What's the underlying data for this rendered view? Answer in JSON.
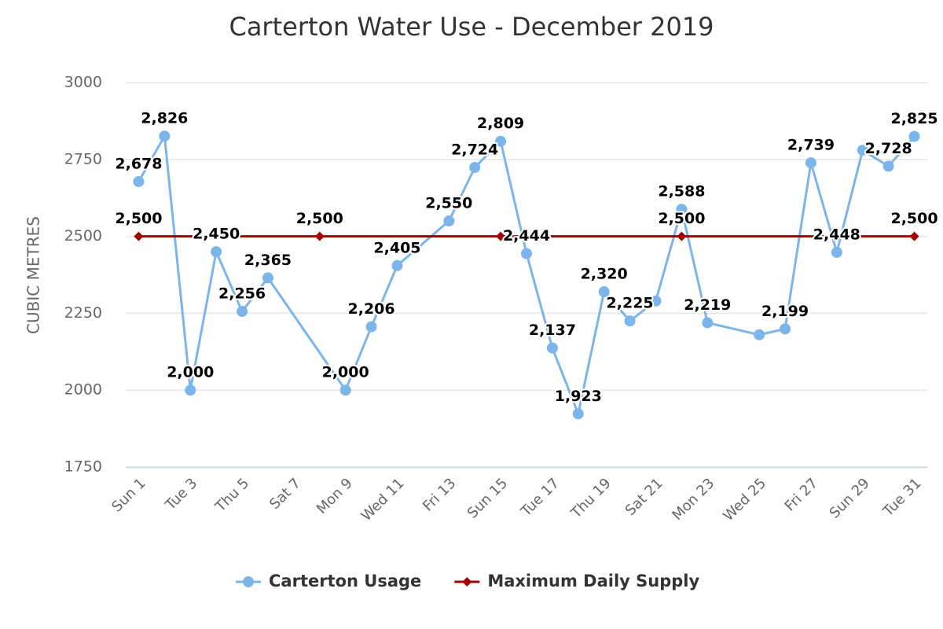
{
  "chart_data": {
    "type": "line",
    "title": "Carterton Water Use - December 2019",
    "y_label": "CUBIC METRES",
    "categories": [
      "Sun 1",
      null,
      "Tue 3",
      null,
      "Thu 5",
      null,
      "Sat 7",
      null,
      "Mon 9",
      null,
      "Wed 11",
      null,
      "Fri 13",
      null,
      "Sun 15",
      null,
      "Tue 17",
      null,
      "Thu 19",
      null,
      "Sat 21",
      null,
      "Mon 23",
      null,
      "Wed 25",
      null,
      "Fri 27",
      null,
      "Sun 29",
      null,
      "Tue 31"
    ],
    "series": [
      {
        "name": "Carterton Usage",
        "color": "#7cb5ec",
        "marker": "circle",
        "values": [
          2678,
          2826,
          2000,
          2450,
          2256,
          2365,
          null,
          null,
          2000,
          2206,
          2405,
          null,
          2550,
          2724,
          2809,
          2444,
          2137,
          1923,
          2320,
          2225,
          2290,
          2588,
          2219,
          null,
          2180,
          2199,
          2739,
          2448,
          2780,
          2728,
          2825
        ],
        "value_labels": [
          "2,678",
          "2,826",
          "2,000",
          "2,450",
          "2,256",
          "2,365",
          null,
          null,
          "2,000",
          "2,206",
          "2,405",
          null,
          "2,550",
          "2,724",
          "2,809",
          "2,444",
          "2,137",
          "1,923",
          "2,320",
          "2,225",
          null,
          "2,588",
          "2,219",
          null,
          null,
          "2,199",
          "2,739",
          "2,448",
          null,
          "2,728",
          "2,825"
        ]
      },
      {
        "name": "Maximum Daily Supply",
        "color": "#a50000",
        "marker": "diamond",
        "values": [
          2500,
          null,
          null,
          null,
          null,
          null,
          null,
          2500,
          null,
          null,
          null,
          null,
          null,
          null,
          2500,
          null,
          null,
          null,
          null,
          null,
          null,
          2500,
          null,
          null,
          null,
          null,
          null,
          null,
          null,
          null,
          2500
        ],
        "value_labels": [
          "2,500",
          null,
          null,
          null,
          null,
          null,
          null,
          "2,500",
          null,
          null,
          null,
          null,
          null,
          null,
          null,
          null,
          null,
          null,
          null,
          null,
          null,
          "2,500",
          null,
          null,
          null,
          null,
          null,
          null,
          null,
          null,
          "2,500"
        ]
      }
    ],
    "connect_nulls": true,
    "ylim": [
      1750,
      3000
    ],
    "yticks": [
      1750,
      2000,
      2250,
      2500,
      2750,
      3000
    ],
    "grid": true,
    "legend": "bottom"
  }
}
